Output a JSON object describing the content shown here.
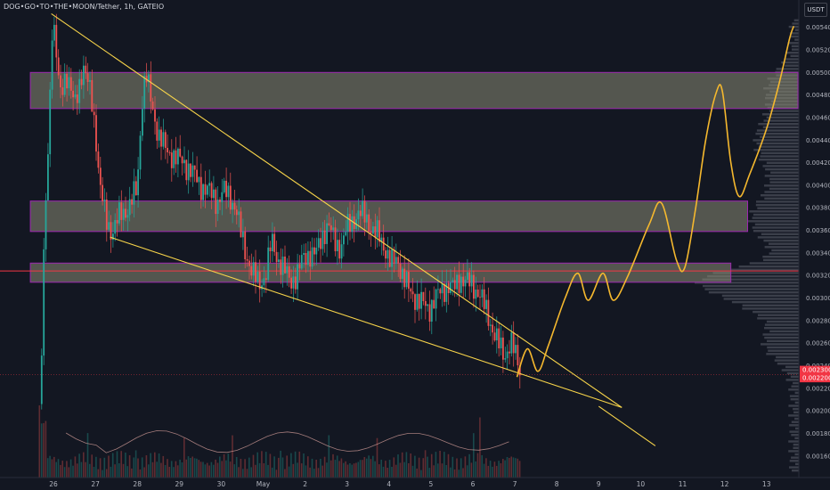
{
  "header": {
    "symbol_legend": "DOG•GO•TO•THE•MOON/Tether, 1h, GATEIO",
    "currency_label": "USDT"
  },
  "colors": {
    "background": "#131722",
    "up": "#26a69a",
    "down": "#ef5350",
    "trendline": "#f7d44a",
    "projection": "#f5b82e",
    "zone_fill": "#8a8a74",
    "zone_border": "#9c27b0",
    "price_line": "#f23645"
  },
  "chart_data": {
    "type": "candlestick",
    "y_axis": {
      "min": 0.00148,
      "max": 0.0055,
      "ticks": [
        "0.001600",
        "0.001800",
        "0.002000",
        "0.002200",
        "0.002400",
        "0.002600",
        "0.002800",
        "0.003000",
        "0.003200",
        "0.003400",
        "0.003600",
        "0.003800",
        "0.004000",
        "0.004200",
        "0.004400",
        "0.004600",
        "0.004800",
        "0.005000",
        "0.005200",
        "0.005400"
      ]
    },
    "x_axis": {
      "day_labels": [
        "26",
        "27",
        "28",
        "29",
        "30",
        "May",
        "2",
        "3",
        "4",
        "5",
        "6",
        "7",
        "8",
        "9",
        "10",
        "11",
        "12",
        "13"
      ]
    },
    "current_price": {
      "value": 0.00232,
      "tags": [
        "0.002300",
        "0.002200"
      ]
    },
    "horizontal_line": 0.00324,
    "zones": [
      {
        "low": 0.00468,
        "high": 0.005,
        "start_day": -0.55,
        "end_day": 17.75
      },
      {
        "low": 0.00359,
        "high": 0.00386,
        "start_day": -0.55,
        "end_day": 16.55
      },
      {
        "low": 0.00314,
        "high": 0.00331,
        "start_day": -0.55,
        "end_day": 16.15
      }
    ],
    "trendlines": [
      {
        "from": {
          "day": -0.05,
          "price": 0.00552
        },
        "to": {
          "day": 13.55,
          "price": 0.00203
        }
      },
      {
        "from": {
          "day": 1.35,
          "price": 0.00354
        },
        "to": {
          "day": 13.55,
          "price": 0.00203
        }
      },
      {
        "from": {
          "day": 13.0,
          "price": 0.00204
        },
        "to": {
          "day": 14.35,
          "price": 0.00169
        }
      }
    ],
    "projection_path": [
      [
        11.05,
        0.0023
      ],
      [
        11.3,
        0.00255
      ],
      [
        11.55,
        0.00235
      ],
      [
        11.8,
        0.00258
      ],
      [
        12.2,
        0.003
      ],
      [
        12.5,
        0.00322
      ],
      [
        12.75,
        0.00298
      ],
      [
        13.1,
        0.00322
      ],
      [
        13.35,
        0.00298
      ],
      [
        13.7,
        0.0032
      ],
      [
        14.2,
        0.00365
      ],
      [
        14.5,
        0.00384
      ],
      [
        14.85,
        0.00334
      ],
      [
        15.05,
        0.00327
      ],
      [
        15.3,
        0.00377
      ],
      [
        15.55,
        0.0044
      ],
      [
        15.8,
        0.00482
      ],
      [
        15.95,
        0.00483
      ],
      [
        16.15,
        0.0042
      ],
      [
        16.35,
        0.0039
      ],
      [
        16.6,
        0.0041
      ],
      [
        17.0,
        0.0045
      ],
      [
        17.3,
        0.0049
      ],
      [
        17.55,
        0.0053
      ],
      [
        17.65,
        0.00541
      ]
    ],
    "price_path": [
      [
        -0.35,
        0.00148
      ],
      [
        -0.32,
        0.00162
      ],
      [
        -0.28,
        0.0025
      ],
      [
        -0.25,
        0.0033
      ],
      [
        -0.22,
        0.0034
      ],
      [
        -0.15,
        0.0042
      ],
      [
        -0.1,
        0.0046
      ],
      [
        -0.02,
        0.0055
      ],
      [
        0.15,
        0.0048
      ],
      [
        0.3,
        0.005
      ],
      [
        0.5,
        0.0047
      ],
      [
        0.7,
        0.00505
      ],
      [
        0.9,
        0.0048
      ],
      [
        1.0,
        0.0045
      ],
      [
        1.1,
        0.004
      ],
      [
        1.25,
        0.0037
      ],
      [
        1.4,
        0.00358
      ],
      [
        1.6,
        0.00375
      ],
      [
        1.8,
        0.0038
      ],
      [
        2.0,
        0.00398
      ],
      [
        2.1,
        0.0047
      ],
      [
        2.2,
        0.005
      ],
      [
        2.35,
        0.0047
      ],
      [
        2.5,
        0.00445
      ],
      [
        2.7,
        0.0043
      ],
      [
        2.9,
        0.00425
      ],
      [
        3.1,
        0.0042
      ],
      [
        3.3,
        0.00412
      ],
      [
        3.5,
        0.004
      ],
      [
        3.7,
        0.00395
      ],
      [
        3.9,
        0.00385
      ],
      [
        4.05,
        0.00395
      ],
      [
        4.2,
        0.0039
      ],
      [
        4.35,
        0.0038
      ],
      [
        4.45,
        0.0036
      ],
      [
        4.6,
        0.00338
      ],
      [
        4.75,
        0.00322
      ],
      [
        4.9,
        0.00312
      ],
      [
        5.05,
        0.0032
      ],
      [
        5.2,
        0.0035
      ],
      [
        5.35,
        0.00335
      ],
      [
        5.5,
        0.00325
      ],
      [
        5.65,
        0.00315
      ],
      [
        5.8,
        0.0032
      ],
      [
        5.95,
        0.00335
      ],
      [
        6.1,
        0.0034
      ],
      [
        6.25,
        0.00338
      ],
      [
        6.4,
        0.00355
      ],
      [
        6.55,
        0.00365
      ],
      [
        6.7,
        0.0035
      ],
      [
        6.85,
        0.00345
      ],
      [
        7.0,
        0.00362
      ],
      [
        7.15,
        0.0037
      ],
      [
        7.3,
        0.00375
      ],
      [
        7.45,
        0.00372
      ],
      [
        7.6,
        0.0036
      ],
      [
        7.75,
        0.00355
      ],
      [
        7.9,
        0.00345
      ],
      [
        8.05,
        0.0033
      ],
      [
        8.2,
        0.00335
      ],
      [
        8.35,
        0.00318
      ],
      [
        8.5,
        0.00305
      ],
      [
        8.65,
        0.003
      ],
      [
        8.8,
        0.00295
      ],
      [
        8.95,
        0.0029
      ],
      [
        9.1,
        0.003
      ],
      [
        9.25,
        0.00306
      ],
      [
        9.4,
        0.00312
      ],
      [
        9.55,
        0.00308
      ],
      [
        9.7,
        0.00318
      ],
      [
        9.85,
        0.00315
      ],
      [
        10.0,
        0.0031
      ],
      [
        10.15,
        0.00305
      ],
      [
        10.3,
        0.0029
      ],
      [
        10.45,
        0.00275
      ],
      [
        10.6,
        0.0026
      ],
      [
        10.75,
        0.00248
      ],
      [
        10.9,
        0.00262
      ],
      [
        11.05,
        0.00245
      ],
      [
        11.15,
        0.00232
      ]
    ]
  }
}
